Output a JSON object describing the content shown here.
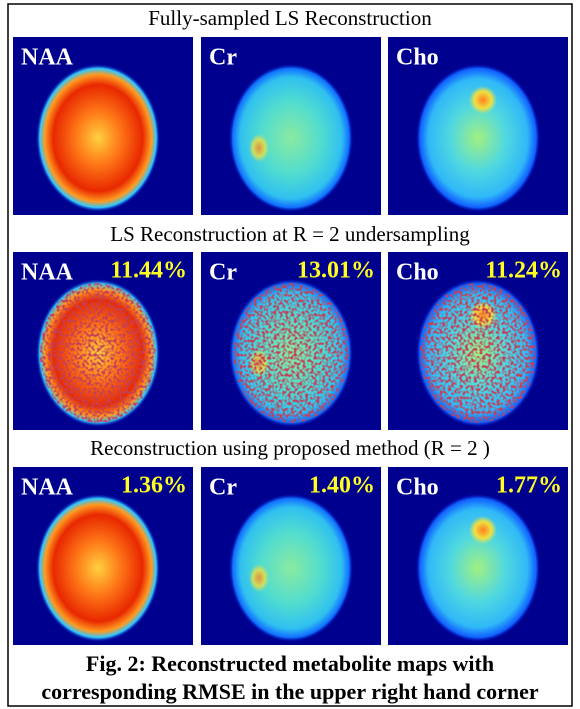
{
  "rows": [
    {
      "title": "Fully-sampled LS Reconstruction",
      "panels": [
        {
          "label": "NAA"
        },
        {
          "label": "Cr"
        },
        {
          "label": "Cho"
        }
      ]
    },
    {
      "title": "LS Reconstruction at R = 2 undersampling",
      "panels": [
        {
          "label": "NAA",
          "rmse": "11.44%"
        },
        {
          "label": "Cr",
          "rmse": "13.01%"
        },
        {
          "label": "Cho",
          "rmse": "11.24%"
        }
      ]
    },
    {
      "title": "Reconstruction using proposed method (R = 2 )",
      "panels": [
        {
          "label": "NAA",
          "rmse": "1.36%"
        },
        {
          "label": "Cr",
          "rmse": "1.40%"
        },
        {
          "label": "Cho",
          "rmse": "1.77%"
        }
      ]
    }
  ],
  "caption": [
    "Fig. 2: Reconstructed metabolite maps with",
    "corresponding RMSE in the upper right hand corner"
  ]
}
